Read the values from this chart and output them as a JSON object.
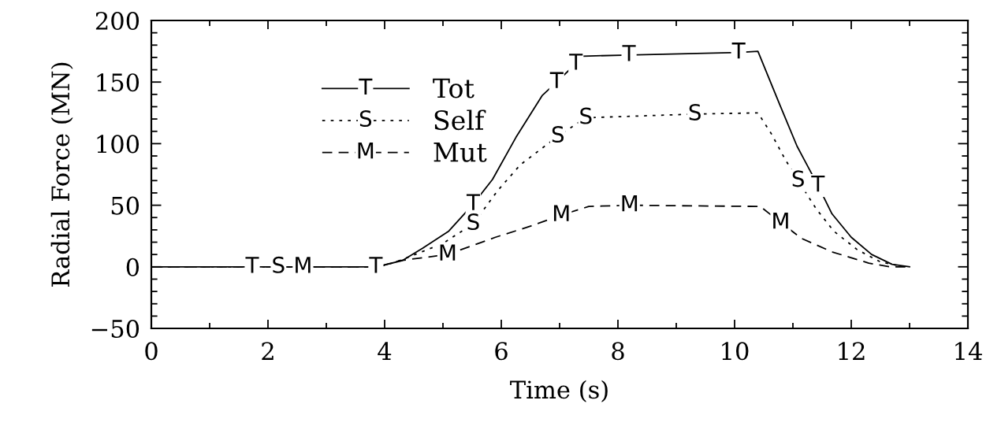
{
  "chart_data": {
    "type": "line",
    "xlabel": "Time (s)",
    "ylabel": "Radial Force (MN)",
    "xlim": [
      0,
      14
    ],
    "xticks": [
      0,
      {
        "value": 1,
        "label": null
      },
      2,
      {
        "value": 3,
        "label": null
      },
      4,
      {
        "value": 5,
        "label": null
      },
      6,
      {
        "value": 7,
        "label": null
      },
      8,
      {
        "value": 9,
        "label": null
      },
      10,
      {
        "value": 11,
        "label": null
      },
      12,
      {
        "value": 13,
        "label": null
      },
      14
    ],
    "ylim": [
      -50,
      200
    ],
    "yticks": [
      {
        "value": -50,
        "label": "−50"
      },
      {
        "value": -40,
        "label": null
      },
      {
        "value": -30,
        "label": null
      },
      {
        "value": -20,
        "label": null
      },
      {
        "value": -10,
        "label": null
      },
      0,
      {
        "value": 10,
        "label": null
      },
      {
        "value": 20,
        "label": null
      },
      {
        "value": 30,
        "label": null
      },
      {
        "value": 40,
        "label": null
      },
      50,
      {
        "value": 60,
        "label": null
      },
      {
        "value": 70,
        "label": null
      },
      {
        "value": 80,
        "label": null
      },
      {
        "value": 90,
        "label": null
      },
      100,
      {
        "value": 110,
        "label": null
      },
      {
        "value": 120,
        "label": null
      },
      {
        "value": 130,
        "label": null
      },
      {
        "value": 140,
        "label": null
      },
      150,
      {
        "value": 160,
        "label": null
      },
      {
        "value": 170,
        "label": null
      },
      {
        "value": 180,
        "label": null
      },
      {
        "value": 190,
        "label": null
      },
      200
    ],
    "legend": "top left",
    "series": [
      {
        "name": "Tot",
        "color": "#000000",
        "line_style": "solid",
        "x": [
          0,
          1.73,
          3.44,
          3.85,
          4.3,
          4.65,
          5.1,
          5.52,
          5.85,
          6.25,
          6.7,
          6.95,
          7.28,
          7.4,
          8.19,
          10.07,
          10.4,
          10.78,
          11.07,
          11.43,
          11.67,
          12.0,
          12.35,
          12.7,
          13.0
        ],
        "values": [
          0,
          0,
          0,
          0,
          5,
          15,
          29,
          51,
          71,
          105,
          139,
          150,
          165,
          171,
          172,
          174,
          175,
          131,
          98,
          66,
          43,
          24,
          10,
          2,
          0
        ],
        "value_labels": [
          null,
          "T",
          null,
          "T",
          null,
          null,
          null,
          "T",
          null,
          null,
          null,
          "T",
          "T",
          null,
          "T",
          "T",
          null,
          null,
          null,
          "T",
          null,
          null,
          null,
          null,
          null
        ]
      },
      {
        "name": "Self",
        "color": "#000000",
        "line_style": "dotted",
        "x": [
          0,
          2.18,
          3.44,
          3.9,
          4.2,
          5.0,
          5.52,
          5.94,
          6.33,
          6.97,
          7.45,
          9.32,
          10.4,
          10.63,
          10.87,
          11.09,
          11.4,
          11.7,
          12.1,
          12.5,
          12.8,
          13.0
        ],
        "values": [
          0,
          0,
          0,
          0,
          4,
          19,
          35,
          62,
          83,
          106,
          121,
          124,
          125,
          108,
          87,
          70,
          47,
          29,
          14,
          4,
          1,
          0
        ],
        "value_labels": [
          null,
          "S",
          null,
          null,
          null,
          null,
          "S",
          null,
          null,
          "S",
          "S",
          "S",
          null,
          null,
          null,
          "S",
          null,
          null,
          null,
          null,
          null,
          null
        ]
      },
      {
        "name": "Mut",
        "color": "#000000",
        "line_style": "dashed",
        "x": [
          0,
          2.6,
          3.44,
          3.9,
          4.26,
          5.08,
          5.9,
          6.5,
          7.03,
          7.5,
          8.2,
          10.44,
          10.79,
          11.15,
          11.68,
          12.3,
          12.67,
          13.0
        ],
        "values": [
          0,
          0,
          0,
          0,
          5,
          10,
          24,
          33,
          42,
          49,
          50,
          49,
          36,
          23,
          12,
          3,
          0,
          0
        ],
        "value_labels": [
          null,
          "M",
          null,
          null,
          null,
          "M",
          null,
          null,
          "M",
          null,
          "M",
          null,
          "M",
          null,
          null,
          null,
          null,
          null
        ]
      }
    ]
  }
}
